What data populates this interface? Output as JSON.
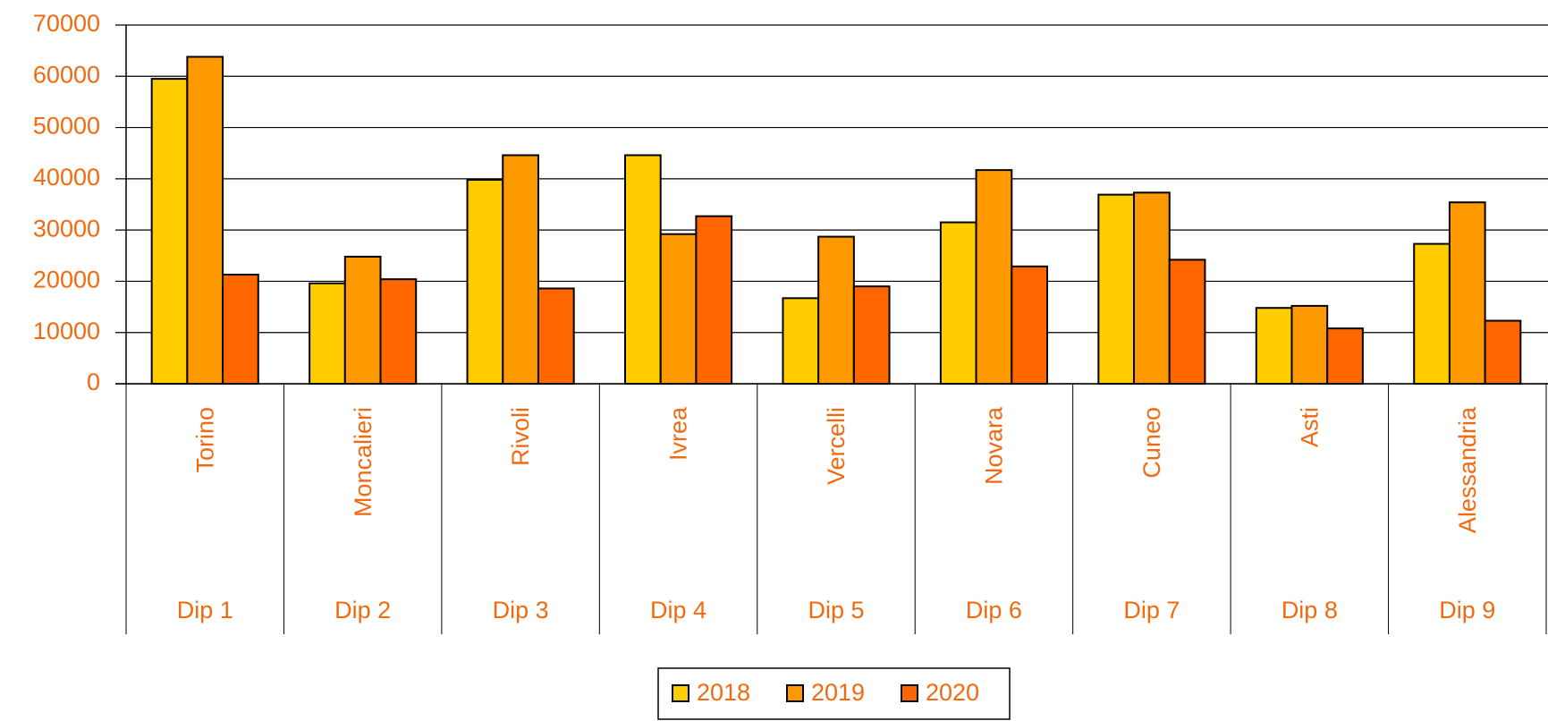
{
  "chart_data": {
    "type": "bar",
    "categories": [
      "Torino",
      "Moncalieri",
      "Rivoli",
      "Ivrea",
      "Vercelli",
      "Novara",
      "Cuneo",
      "Asti",
      "Alessandria"
    ],
    "category_groups": [
      "Dip 1",
      "Dip 2",
      "Dip 3",
      "Dip 4",
      "Dip 5",
      "Dip 6",
      "Dip 7",
      "Dip 8",
      "Dip 9"
    ],
    "series": [
      {
        "name": "2018",
        "color": "#ffcc00",
        "values": [
          59500,
          19600,
          39800,
          44600,
          16700,
          31500,
          36900,
          14800,
          27300
        ]
      },
      {
        "name": "2019",
        "color": "#ff9900",
        "values": [
          63800,
          24800,
          44600,
          29200,
          28700,
          41700,
          37300,
          15200,
          35400
        ]
      },
      {
        "name": "2020",
        "color": "#ff6600",
        "values": [
          21300,
          20400,
          18600,
          32700,
          19000,
          22900,
          24200,
          10800,
          12300
        ]
      }
    ],
    "ylim": [
      0,
      70000
    ],
    "yticks": [
      0,
      10000,
      20000,
      30000,
      40000,
      50000,
      60000,
      70000
    ],
    "grid": true,
    "legend": "bottom"
  }
}
